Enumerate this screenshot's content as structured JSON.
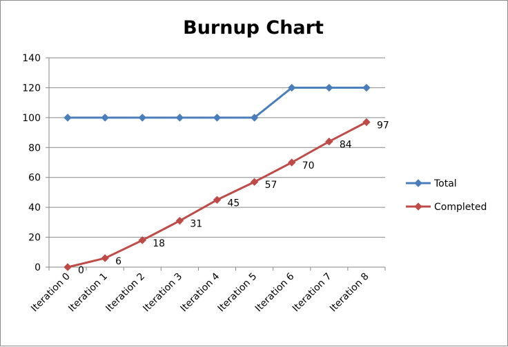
{
  "chart_data": {
    "type": "line",
    "title": "Burnup Chart",
    "xlabel": "",
    "ylabel": "",
    "categories": [
      "Iteration 0",
      "Iteration 1",
      "Iteration 2",
      "Iteration 3",
      "Iteration 4",
      "Iteration 5",
      "Iteration 6",
      "Iteration 7",
      "Iteration 8"
    ],
    "ylim": [
      0,
      140
    ],
    "yticks": [
      0,
      20,
      40,
      60,
      80,
      100,
      120,
      140
    ],
    "grid": true,
    "legend_position": "right",
    "series": [
      {
        "name": "Total",
        "color": "#4a7ebb",
        "values": [
          100,
          100,
          100,
          100,
          100,
          100,
          120,
          120,
          120
        ],
        "show_labels": false
      },
      {
        "name": "Completed",
        "color": "#be4b48",
        "values": [
          0,
          6,
          18,
          31,
          45,
          57,
          70,
          84,
          97
        ],
        "show_labels": true
      }
    ]
  }
}
